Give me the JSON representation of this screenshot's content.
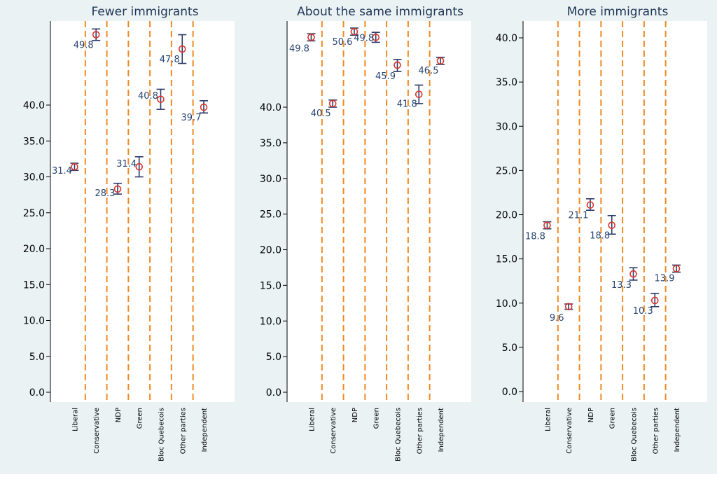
{
  "chart_data": [
    {
      "type": "scatter",
      "title": "Fewer immigrants",
      "categories": [
        "Liberal",
        "Conservative",
        "NDP",
        "Green",
        "Bloc Quebecois",
        "Other parties",
        "Independent"
      ],
      "values": [
        31.4,
        49.8,
        28.3,
        31.4,
        40.8,
        47.8,
        39.7
      ],
      "value_labels": [
        "31.4",
        "49.8",
        "28.3",
        "31.4",
        "40.8",
        "47.8",
        "39.7"
      ],
      "ci_low": [
        30.9,
        49.0,
        27.6,
        30.0,
        39.4,
        45.8,
        38.9
      ],
      "ci_high": [
        31.9,
        50.6,
        29.1,
        32.8,
        42.2,
        49.8,
        40.6
      ],
      "yticks": [
        "0.0",
        "5.0",
        "10.0",
        "15.0",
        "20.0",
        "25.0",
        "30.0",
        "35.0",
        "40.0"
      ],
      "ytick_values": [
        0,
        5,
        10,
        15,
        20,
        25,
        30,
        35,
        40
      ],
      "ylim": [
        -1,
        52.5
      ],
      "xlabel": "",
      "ylabel": ""
    },
    {
      "type": "scatter",
      "title": "About the same immigrants",
      "categories": [
        "Liberal",
        "Conservative",
        "NDP",
        "Green",
        "Bloc Quebecois",
        "Other parties",
        "Independent"
      ],
      "values": [
        49.8,
        40.5,
        50.6,
        49.8,
        45.9,
        41.8,
        46.5
      ],
      "value_labels": [
        "49.8",
        "40.5",
        "50.6",
        "49.8",
        "45.9",
        "41.8",
        "46.5"
      ],
      "ci_low": [
        49.3,
        40.0,
        50.1,
        49.1,
        45.0,
        40.5,
        46.0
      ],
      "ci_high": [
        50.3,
        41.0,
        51.1,
        50.5,
        46.7,
        43.1,
        47.0
      ],
      "yticks": [
        "0.0",
        "5.0",
        "10.0",
        "15.0",
        "20.0",
        "25.0",
        "30.0",
        "35.0",
        "40.0"
      ],
      "ytick_values": [
        0,
        5,
        10,
        15,
        20,
        25,
        30,
        35,
        40
      ],
      "ylim": [
        -1,
        52.5
      ],
      "xlabel": "",
      "ylabel": ""
    },
    {
      "type": "scatter",
      "title": "More immigrants",
      "categories": [
        "Liberal",
        "Conservative",
        "NDP",
        "Green",
        "Bloc Quebecois",
        "Other parties",
        "Independent"
      ],
      "values": [
        18.8,
        9.6,
        21.1,
        18.8,
        13.3,
        10.3,
        13.9
      ],
      "value_labels": [
        "18.8",
        "9.6",
        "21.1",
        "18.8",
        "13.3",
        "10.3",
        "13.9"
      ],
      "ci_low": [
        18.4,
        9.3,
        20.5,
        17.8,
        12.6,
        9.6,
        13.5
      ],
      "ci_high": [
        19.2,
        9.9,
        21.8,
        19.9,
        14.0,
        11.1,
        14.3
      ],
      "yticks": [
        "0.0",
        "5.0",
        "10.0",
        "15.0",
        "20.0",
        "25.0",
        "30.0",
        "35.0",
        "40.0"
      ],
      "ytick_values": [
        0,
        5,
        10,
        15,
        20,
        25,
        30,
        35,
        40
      ],
      "ylim": [
        -1,
        42.5
      ],
      "xlabel": "",
      "ylabel": ""
    }
  ],
  "colors": {
    "outer_background": "#eaf2f3",
    "plot_background": "#ffffff",
    "divider": "#f08a24",
    "marker": "#d9342b",
    "errorbar": "#2b3a67",
    "label": "#274472",
    "axis": "#000000"
  }
}
